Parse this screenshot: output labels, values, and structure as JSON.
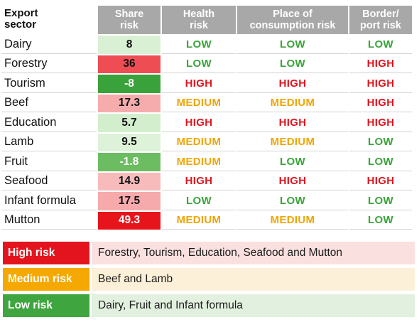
{
  "headers": {
    "sector": [
      "Export",
      "sector"
    ],
    "share": [
      "Share",
      "risk"
    ],
    "health": [
      "Health",
      "risk"
    ],
    "place": [
      "Place of",
      "consumption risk"
    ],
    "border": [
      "Border/",
      "port risk"
    ]
  },
  "chart_data": {
    "type": "table",
    "columns": [
      "Export sector",
      "Share risk",
      "Health risk",
      "Place of consumption risk",
      "Border/ port risk"
    ],
    "rows": [
      {
        "sector": "Dairy",
        "share": "8",
        "share_value": 8,
        "health": "LOW",
        "place": "LOW",
        "border": "LOW"
      },
      {
        "sector": "Forestry",
        "share": "36",
        "share_value": 36,
        "health": "LOW",
        "place": "LOW",
        "border": "HIGH"
      },
      {
        "sector": "Tourism",
        "share": "-8",
        "share_value": -8,
        "health": "HIGH",
        "place": "HIGH",
        "border": "HIGH"
      },
      {
        "sector": "Beef",
        "share": "17.3",
        "share_value": 17.3,
        "health": "MEDIUM",
        "place": "MEDIUM",
        "border": "HIGH"
      },
      {
        "sector": "Education",
        "share": "5.7",
        "share_value": 5.7,
        "health": "HIGH",
        "place": "HIGH",
        "border": "HIGH"
      },
      {
        "sector": "Lamb",
        "share": "9.5",
        "share_value": 9.5,
        "health": "MEDIUM",
        "place": "MEDIUM",
        "border": "LOW"
      },
      {
        "sector": "Fruit",
        "share": "-1.8",
        "share_value": -1.8,
        "health": "MEDIUM",
        "place": "LOW",
        "border": "LOW"
      },
      {
        "sector": "Seafood",
        "share": "14.9",
        "share_value": 14.9,
        "health": "HIGH",
        "place": "HIGH",
        "border": "HIGH"
      },
      {
        "sector": "Infant formula",
        "share": "17.5",
        "share_value": 17.5,
        "health": "LOW",
        "place": "LOW",
        "border": "LOW"
      },
      {
        "sector": "Mutton",
        "share": "49.3",
        "share_value": 49.3,
        "health": "MEDIUM",
        "place": "MEDIUM",
        "border": "LOW"
      }
    ]
  },
  "legend": [
    {
      "key": "High risk",
      "text": "Forestry, Tourism, Education, Seafood and Mutton",
      "key_color": "#e3141e",
      "bg_color": "#fbe0e0"
    },
    {
      "key": "Medium risk",
      "text": "Beef and Lamb",
      "key_color": "#f5a800",
      "bg_color": "#fdf0d8"
    },
    {
      "key": "Low risk",
      "text": "Dairy, Fruit and Infant formula",
      "key_color": "#3fa63f",
      "bg_color": "#e2f0df"
    }
  ],
  "colors": {
    "header_bg": "#a8a8a8",
    "low": "#3aa43a",
    "medium": "#f0a500",
    "high": "#e1141e"
  }
}
